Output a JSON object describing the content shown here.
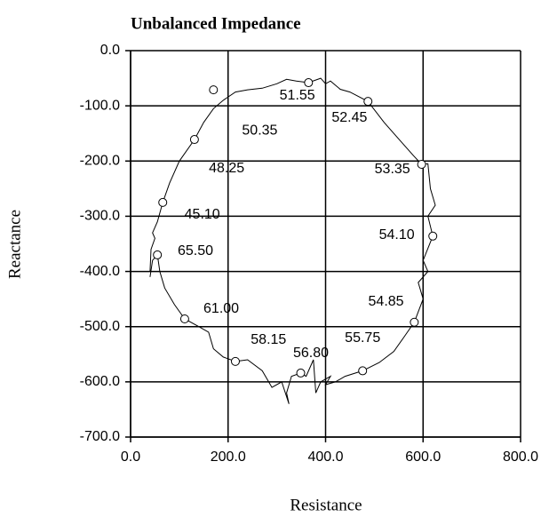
{
  "chart_data": {
    "type": "line",
    "title": "Unbalanced Impedance",
    "xlabel": "Resistance",
    "ylabel": "Reactance",
    "xlim": [
      0,
      800
    ],
    "ylim": [
      -700,
      0
    ],
    "xticks": [
      {
        "value": 0,
        "label": "0.0"
      },
      {
        "value": 200,
        "label": "200.0"
      },
      {
        "value": 400,
        "label": "400.0"
      },
      {
        "value": 600,
        "label": "600.0"
      },
      {
        "value": 800,
        "label": "800.0"
      }
    ],
    "yticks": [
      {
        "value": 0,
        "label": "0.0"
      },
      {
        "value": -100,
        "label": "-100.0"
      },
      {
        "value": -200,
        "label": "-200.0"
      },
      {
        "value": -300,
        "label": "-300.0"
      },
      {
        "value": -400,
        "label": "-400.0"
      },
      {
        "value": -500,
        "label": "-500.0"
      },
      {
        "value": -600,
        "label": "-600.0"
      },
      {
        "value": -700,
        "label": "-700.0"
      }
    ],
    "grid": true,
    "color": "#000000",
    "curve": {
      "x": [
        40,
        42,
        50,
        45,
        55,
        66,
        80,
        100,
        131,
        150,
        170,
        190,
        215,
        240,
        270,
        300,
        320,
        340,
        365,
        390,
        400,
        410,
        430,
        450,
        487,
        520,
        550,
        580,
        597,
        610,
        615,
        625,
        610,
        620,
        600,
        610,
        590,
        600,
        582,
        560,
        540,
        510,
        476,
        440,
        420,
        400,
        410,
        390,
        380,
        375,
        360,
        349,
        330,
        320,
        325,
        310,
        290,
        270,
        240,
        215,
        190,
        170,
        160,
        140,
        111,
        90,
        70,
        60,
        55,
        45,
        40
      ],
      "y": [
        -400,
        -360,
        -340,
        -330,
        -310,
        -275,
        -240,
        -200,
        -161,
        -130,
        -105,
        -90,
        -75,
        -71,
        -68,
        -60,
        -52,
        -55,
        -58,
        -50,
        -60,
        -55,
        -70,
        -75,
        -92,
        -130,
        -160,
        -190,
        -206,
        -205,
        -250,
        -280,
        -300,
        -336,
        -380,
        -400,
        -420,
        -450,
        -492,
        -520,
        -545,
        -565,
        -580,
        -590,
        -600,
        -605,
        -590,
        -600,
        -620,
        -560,
        -590,
        -584,
        -590,
        -620,
        -640,
        -600,
        -610,
        -580,
        -560,
        -563,
        -555,
        -540,
        -510,
        -500,
        -486,
        -460,
        -430,
        -400,
        -370,
        -380,
        -410
      ]
    },
    "markers": {
      "x": [
        170,
        365,
        487,
        597,
        620,
        582,
        476,
        349,
        215,
        111,
        55,
        66,
        131
      ],
      "y": [
        -71,
        -58,
        -92,
        -206,
        -336,
        -492,
        -580,
        -584,
        -563,
        -486,
        -370,
        -275,
        -161
      ]
    },
    "annotations": [
      {
        "text": "51.55",
        "x": 342,
        "y": -82
      },
      {
        "text": "52.45",
        "x": 449,
        "y": -122
      },
      {
        "text": "50.35",
        "x": 265,
        "y": -145
      },
      {
        "text": "48.25",
        "x": 197,
        "y": -214
      },
      {
        "text": "53.35",
        "x": 537,
        "y": -215
      },
      {
        "text": "45.10",
        "x": 147,
        "y": -297
      },
      {
        "text": "54.10",
        "x": 546,
        "y": -334
      },
      {
        "text": "65.50",
        "x": 133,
        "y": -363
      },
      {
        "text": "54.85",
        "x": 524,
        "y": -455
      },
      {
        "text": "61.00",
        "x": 186,
        "y": -468
      },
      {
        "text": "58.15",
        "x": 283,
        "y": -524
      },
      {
        "text": "55.75",
        "x": 476,
        "y": -521
      },
      {
        "text": "56.80",
        "x": 370,
        "y": -548
      }
    ]
  }
}
